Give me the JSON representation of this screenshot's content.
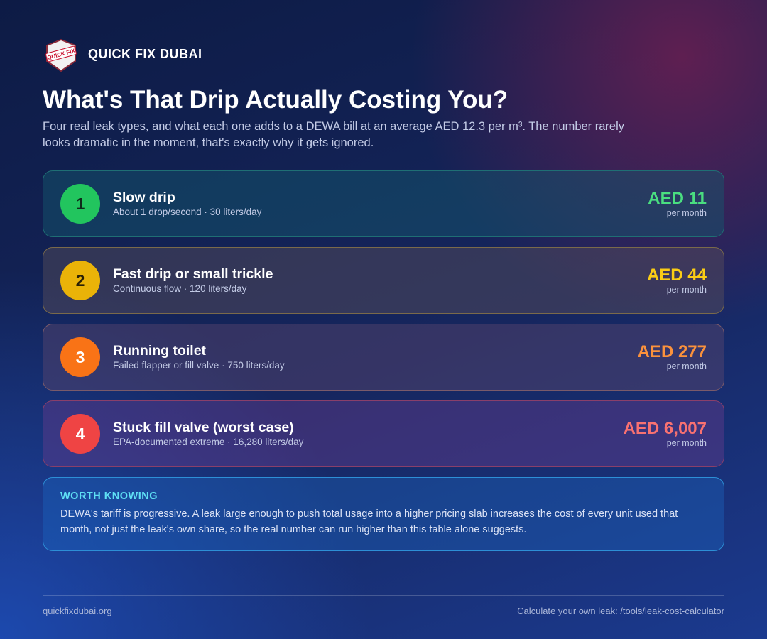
{
  "header": {
    "logo_text": "QUICK FIX",
    "brand": "QUICK FIX DUBAI"
  },
  "title": "What's That Drip Actually Costing You?",
  "subtitle": "Four real leak types, and what each one adds to a DEWA bill at an average AED 12.3 per m³. The number rarely looks dramatic in the moment, that's exactly why it gets ignored.",
  "items": [
    {
      "number": "1",
      "name": "Slow drip",
      "detail": "About 1 drop/second · 30 liters/day",
      "cost": "AED 11",
      "period": "per month"
    },
    {
      "number": "2",
      "name": "Fast drip or small trickle",
      "detail": "Continuous flow · 120 liters/day",
      "cost": "AED 44",
      "period": "per month"
    },
    {
      "number": "3",
      "name": "Running toilet",
      "detail": "Failed flapper or fill valve · 750 liters/day",
      "cost": "AED 277",
      "period": "per month"
    },
    {
      "number": "4",
      "name": "Stuck fill valve (worst case)",
      "detail": "EPA-documented extreme · 16,280 liters/day",
      "cost": "AED 6,007",
      "period": "per month"
    }
  ],
  "note": {
    "heading": "WORTH KNOWING",
    "text": "DEWA's tariff is progressive. A leak large enough to push total usage into a higher pricing slab increases the cost of every unit used that month, not just the leak's own share, so the real number can run higher than this table alone suggests."
  },
  "footer": {
    "left": "quickfixdubai.org",
    "right": "Calculate your own leak: /tools/leak-cost-calculator"
  }
}
